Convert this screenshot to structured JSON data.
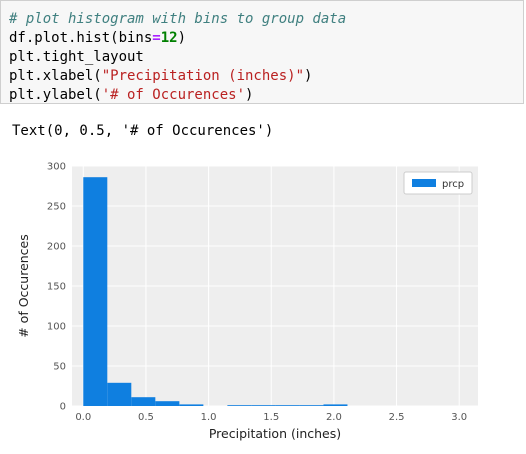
{
  "code_cell": {
    "line1_comment": "# plot histogram with bins to group data",
    "line2_a": "df.plot.hist(bins",
    "line2_op": "=",
    "line2_num": "12",
    "line2_b": ")",
    "line3": "plt.tight_layout",
    "line4_a": "plt.xlabel(",
    "line4_str": "\"Precipitation (inches)\"",
    "line4_b": ")",
    "line5_a": "plt.ylabel(",
    "line5_str": "'# of Occurences'",
    "line5_b": ")"
  },
  "output_text": "Text(0, 0.5, '# of Occurences')",
  "colors": {
    "bar": "#0f7fe0",
    "plot_bg": "#eeeeee",
    "grid": "#ffffff"
  },
  "chart_data": {
    "type": "bar",
    "subtype": "histogram",
    "bins": 12,
    "bin_edges": [
      0.0,
      0.1917,
      0.3833,
      0.575,
      0.7667,
      0.9583,
      1.15,
      1.3417,
      1.5333,
      1.725,
      1.9167,
      2.1083,
      2.3
    ],
    "values": [
      286,
      29,
      11,
      6,
      2,
      0,
      1,
      1,
      1,
      1,
      2,
      0
    ],
    "series": [
      {
        "name": "prcp",
        "values": [
          286,
          29,
          11,
          6,
          2,
          0,
          1,
          1,
          1,
          1,
          2,
          0
        ]
      }
    ],
    "xlabel": "Precipitation (inches)",
    "ylabel": "# of Occurences",
    "xlim": [
      -0.09,
      3.15
    ],
    "ylim": [
      0,
      300
    ],
    "xticks": [
      "0.0",
      "0.5",
      "1.0",
      "1.5",
      "2.0",
      "2.5",
      "3.0"
    ],
    "yticks": [
      "0",
      "50",
      "100",
      "150",
      "200",
      "250",
      "300"
    ],
    "legend": {
      "placement": "top-right",
      "entries": [
        "prcp"
      ]
    },
    "grid": true
  }
}
